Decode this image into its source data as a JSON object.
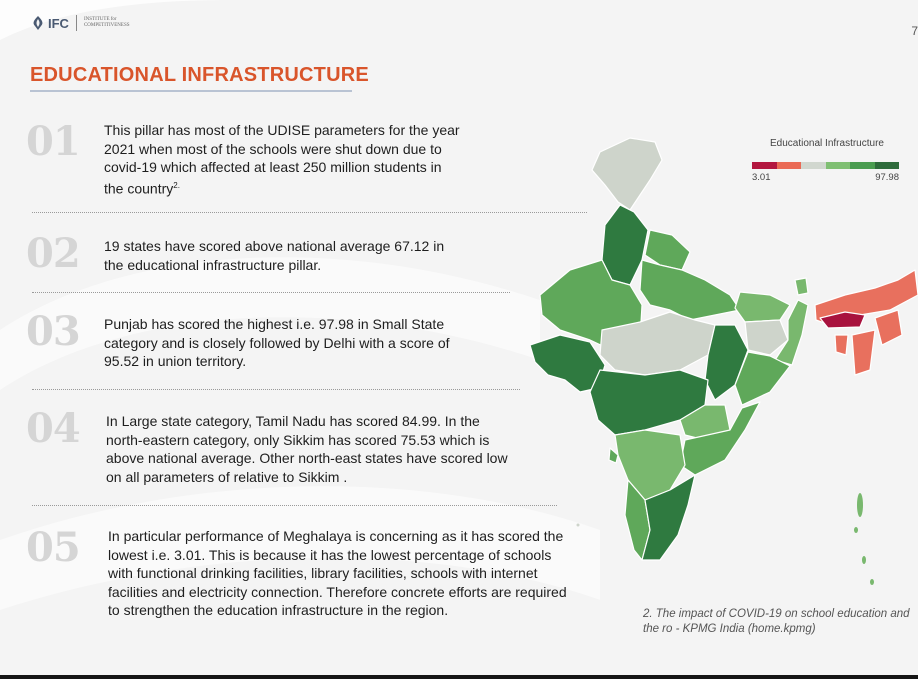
{
  "header": {
    "logo_text": "IFC",
    "logo_sub_line1": "INSTITUTE for",
    "logo_sub_line2": "COMPETITIVENESS",
    "page_number": "7"
  },
  "title": "EDUCATIONAL INFRASTRUCTURE",
  "points": [
    {
      "number": "01",
      "text": "This pillar has most of the UDISE parameters for the year 2021 when most of the schools were shut down due to covid-19 which affected at least 250 million students in the country",
      "superscript": "2."
    },
    {
      "number": "02",
      "text": "19 states have scored above national average 67.12 in the educational infrastructure pillar."
    },
    {
      "number": "03",
      "text": "Punjab has scored the highest i.e. 97.98 in Small State category and is closely followed by Delhi with a score of 95.52 in union territory."
    },
    {
      "number": "04",
      "text": "In Large state category, Tamil Nadu has scored 84.99. In the north-eastern category, only Sikkim has scored 75.53 which is above national average. Other north-east states have scored low on all parameters of relative to Sikkim ."
    },
    {
      "number": "05",
      "text": "In particular performance of Meghalaya is concerning as it has scored the lowest i.e. 3.01. This is because it has the lowest percentage of schools with functional drinking facilities, library facilities, schools with internet facilities and electricity connection. Therefore concrete efforts are required to strengthen the education infrastructure in the region."
    }
  ],
  "legend": {
    "title": "Educational Infrastructure",
    "min": "3.01",
    "max": "97.98",
    "colors": [
      "#b3163f",
      "#ea6a55",
      "#d1d7cf",
      "#7fbf72",
      "#4a9c50",
      "#2e6b3b"
    ]
  },
  "map_colors": {
    "dark_green": "#2f7a40",
    "mid_green": "#5fa85a",
    "light_green": "#79b86e",
    "grey": "#ced4cb",
    "salmon": "#e8705e",
    "crimson": "#a8123e"
  },
  "footnote": "2. The impact of COVID-19 on school education and the ro - KPMG India (home.kpmg)"
}
